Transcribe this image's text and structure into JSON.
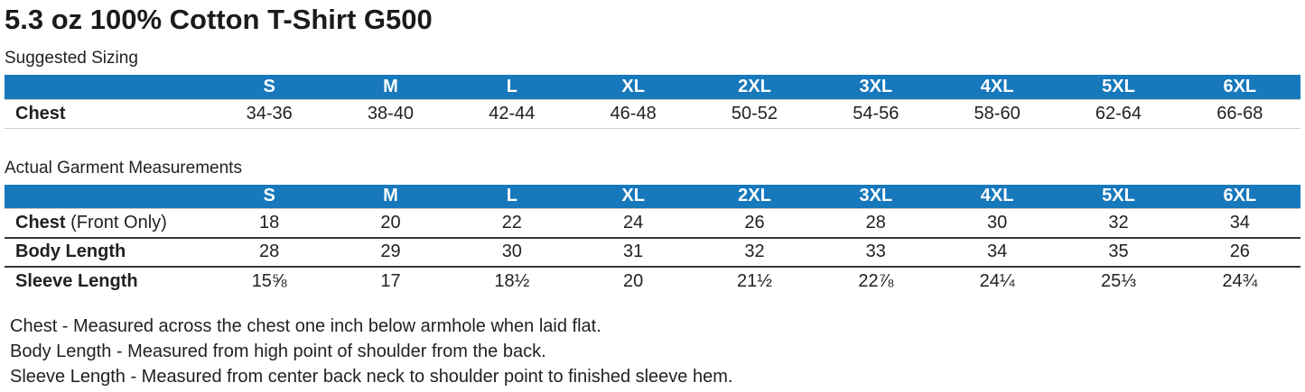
{
  "page": {
    "title": "5.3 oz 100% Cotton T-Shirt G500"
  },
  "colors": {
    "header_blue": "#1878BC",
    "header_text": "#FFFFFF",
    "body_text": "#231F20"
  },
  "suggested_sizing": {
    "label": "Suggested Sizing",
    "columns": [
      "S",
      "M",
      "L",
      "XL",
      "2XL",
      "3XL",
      "4XL",
      "5XL",
      "6XL"
    ],
    "rows": [
      {
        "label": "Chest",
        "label_suffix": "",
        "values": [
          "34-36",
          "38-40",
          "42-44",
          "46-48",
          "50-52",
          "54-56",
          "58-60",
          "62-64",
          "66-68"
        ]
      }
    ]
  },
  "actual_measurements": {
    "label": "Actual Garment Measurements",
    "columns": [
      "S",
      "M",
      "L",
      "XL",
      "2XL",
      "3XL",
      "4XL",
      "5XL",
      "6XL"
    ],
    "rows": [
      {
        "label": "Chest",
        "label_suffix": " (Front Only)",
        "values": [
          "18",
          "20",
          "22",
          "24",
          "26",
          "28",
          "30",
          "32",
          "34"
        ]
      },
      {
        "label": "Body Length",
        "label_suffix": "",
        "values": [
          "28",
          "29",
          "30",
          "31",
          "32",
          "33",
          "34",
          "35",
          "26"
        ]
      },
      {
        "label": "Sleeve Length",
        "label_suffix": "",
        "values": [
          "15⅝",
          "17",
          "18½",
          "20",
          "21½",
          "22⅞",
          "24¼",
          "25⅓",
          "24¾"
        ]
      }
    ]
  },
  "notes": [
    "Chest - Measured across the chest one inch below armhole when laid flat.",
    "Body Length - Measured from high point of shoulder from the back.",
    "Sleeve Length - Measured from center back neck to shoulder point to finished sleeve hem."
  ]
}
